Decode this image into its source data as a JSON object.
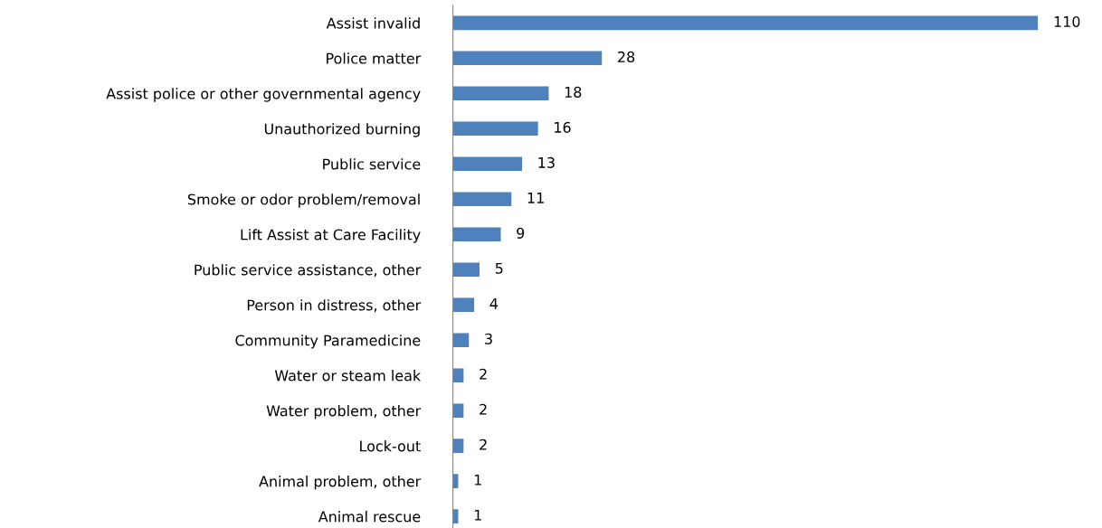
{
  "chart_data": {
    "type": "bar",
    "orientation": "horizontal",
    "categories": [
      "Assist invalid",
      "Police matter",
      "Assist police or other governmental agency",
      "Unauthorized burning",
      "Public service",
      "Smoke or odor problem/removal",
      "Lift Assist at Care Facility",
      "Public service assistance, other",
      "Person in distress, other",
      "Community Paramedicine",
      "Water or steam leak",
      "Water problem, other",
      "Lock-out",
      "Animal problem, other",
      "Animal rescue"
    ],
    "values": [
      110,
      28,
      18,
      16,
      13,
      11,
      9,
      5,
      4,
      3,
      2,
      2,
      2,
      1,
      1
    ],
    "color": "#4f81bd",
    "data_labels": true,
    "tick_labels": "y",
    "grid": false
  }
}
